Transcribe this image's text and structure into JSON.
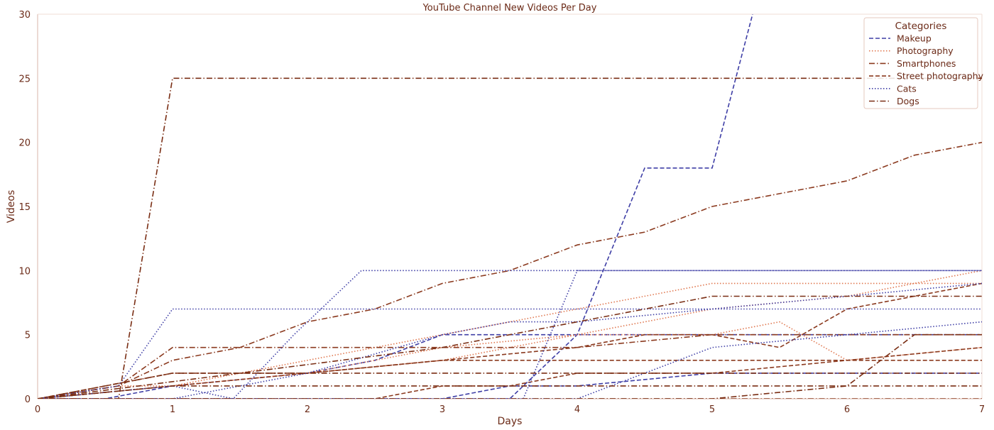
{
  "chart_data": {
    "type": "line",
    "title": "YouTube Channel New Videos Per Day",
    "xlabel": "Days",
    "ylabel": "Videos",
    "xlim": [
      0,
      7
    ],
    "ylim": [
      0,
      30
    ],
    "x_ticks": [
      0,
      1,
      2,
      3,
      4,
      5,
      6,
      7
    ],
    "y_ticks": [
      0,
      5,
      10,
      15,
      20,
      25,
      30
    ],
    "grid": false,
    "legend": {
      "title": "Categories",
      "placement": "top-right",
      "entries": [
        {
          "name": "Makeup",
          "color": "#3f3fa6",
          "dash": "dashed"
        },
        {
          "name": "Photography",
          "color": "#e07850",
          "dash": "dotted"
        },
        {
          "name": "Smartphones",
          "color": "#8b3a1f",
          "dash": "dashdot"
        },
        {
          "name": "Street photography",
          "color": "#8b3a1f",
          "dash": "dashed"
        },
        {
          "name": "Cats",
          "color": "#3f3fa6",
          "dash": "dotted"
        },
        {
          "name": "Dogs",
          "color": "#7a2e14",
          "dash": "dashdot"
        }
      ]
    },
    "series": [
      {
        "name": "Makeup",
        "color": "#3f3fa6",
        "dash": "dashed",
        "x": [
          0,
          1,
          2,
          3,
          3.5,
          4,
          4.5,
          5,
          5.3
        ],
        "y": [
          0,
          0,
          0,
          0,
          0,
          5,
          18,
          18,
          30
        ]
      },
      {
        "name": "Makeup",
        "color": "#3f3fa6",
        "dash": "dashed",
        "x": [
          0,
          0.5,
          1,
          2,
          2.5,
          3,
          3.5,
          4,
          5,
          6,
          7
        ],
        "y": [
          0,
          0,
          1,
          2,
          3,
          5,
          5,
          5,
          5,
          5,
          5
        ]
      },
      {
        "name": "Makeup",
        "color": "#3f3fa6",
        "dash": "dashed",
        "x": [
          0,
          3,
          3.5,
          4,
          5,
          6,
          7
        ],
        "y": [
          0,
          0,
          1,
          1,
          2,
          2,
          2
        ]
      },
      {
        "name": "Photography",
        "color": "#e07850",
        "dash": "dotted",
        "x": [
          0,
          0.6,
          1,
          2,
          3,
          4,
          5,
          6,
          7
        ],
        "y": [
          0,
          1,
          1,
          3,
          5,
          7,
          9,
          9,
          9
        ]
      },
      {
        "name": "Photography",
        "color": "#e07850",
        "dash": "dotted",
        "x": [
          0,
          1,
          2,
          3,
          4,
          4.5,
          5,
          5.5,
          6,
          7
        ],
        "y": [
          0,
          1,
          2,
          4,
          5,
          5,
          5,
          6,
          3,
          4
        ]
      },
      {
        "name": "Photography",
        "color": "#e07850",
        "dash": "dotted",
        "x": [
          0,
          1,
          2,
          3,
          4,
          5,
          6,
          7
        ],
        "y": [
          0,
          1,
          2,
          3,
          5,
          7,
          8,
          10
        ]
      },
      {
        "name": "Smartphones",
        "color": "#8b3a1f",
        "dash": "dashdot",
        "x": [
          0,
          0.6,
          1,
          1.5,
          2,
          2.5,
          3,
          3.5,
          4,
          4.5,
          5,
          5.5,
          6,
          6.5,
          7
        ],
        "y": [
          0,
          1,
          3,
          4,
          6,
          7,
          9,
          10,
          12,
          13,
          15,
          16,
          17,
          19,
          20
        ]
      },
      {
        "name": "Smartphones",
        "color": "#8b3a1f",
        "dash": "dashdot",
        "x": [
          0,
          0.6,
          1,
          2,
          3,
          4,
          5,
          6,
          7
        ],
        "y": [
          0,
          1,
          4,
          4,
          4,
          4,
          5,
          5,
          5
        ]
      },
      {
        "name": "Smartphones",
        "color": "#8b3a1f",
        "dash": "dashdot",
        "x": [
          0,
          1,
          2,
          3,
          4,
          5,
          6,
          7
        ],
        "y": [
          0,
          0,
          0,
          0,
          0,
          0,
          0,
          0
        ]
      },
      {
        "name": "Street photography",
        "color": "#8b3a1f",
        "dash": "dashed",
        "x": [
          0,
          1,
          2,
          3,
          4,
          4.5,
          5,
          5.5,
          6,
          7
        ],
        "y": [
          0,
          1,
          2,
          3,
          4,
          5,
          5,
          4,
          7,
          9
        ]
      },
      {
        "name": "Street photography",
        "color": "#8b3a1f",
        "dash": "dashed",
        "x": [
          0,
          1,
          2,
          3,
          4,
          5,
          6,
          7
        ],
        "y": [
          0,
          2,
          2,
          3,
          3,
          3,
          3,
          3
        ]
      },
      {
        "name": "Street photography",
        "color": "#8b3a1f",
        "dash": "dashed",
        "x": [
          0,
          2,
          2.5,
          3,
          3.5,
          4,
          4.5,
          5,
          6,
          7
        ],
        "y": [
          0,
          0,
          0,
          1,
          1,
          2,
          2,
          2,
          3,
          4
        ]
      },
      {
        "name": "Cats",
        "color": "#3f3fa6",
        "dash": "dotted",
        "x": [
          0,
          0.6,
          1,
          2,
          3,
          4,
          5,
          6,
          7
        ],
        "y": [
          0,
          1,
          7,
          7,
          7,
          7,
          7,
          7,
          7
        ]
      },
      {
        "name": "Cats",
        "color": "#3f3fa6",
        "dash": "dotted",
        "x": [
          0,
          1,
          1.45,
          1.9,
          2.4,
          3,
          4,
          5,
          6,
          7
        ],
        "y": [
          0,
          1,
          0,
          5,
          10,
          10,
          10,
          10,
          10,
          10
        ]
      },
      {
        "name": "Cats",
        "color": "#3f3fa6",
        "dash": "dotted",
        "x": [
          0,
          1,
          1.5,
          2,
          3,
          3.5,
          4,
          5,
          6,
          7
        ],
        "y": [
          0,
          0,
          1,
          2,
          5,
          6,
          6,
          7,
          8,
          9
        ]
      },
      {
        "name": "Cats",
        "color": "#3f3fa6",
        "dash": "dotted",
        "x": [
          0,
          3.6,
          4,
          5,
          6,
          7
        ],
        "y": [
          0,
          0,
          10,
          10,
          10,
          10
        ]
      },
      {
        "name": "Cats",
        "color": "#3f3fa6",
        "dash": "dotted",
        "x": [
          0,
          2,
          3,
          4,
          4.5,
          5,
          6,
          7
        ],
        "y": [
          0,
          0,
          0,
          0,
          2,
          4,
          5,
          6
        ]
      },
      {
        "name": "Dogs",
        "color": "#7a2e14",
        "dash": "dashdot",
        "x": [
          0,
          0.6,
          1,
          2,
          3,
          4,
          5,
          6,
          7
        ],
        "y": [
          0,
          0,
          25,
          25,
          25,
          25,
          25,
          25,
          25
        ]
      },
      {
        "name": "Dogs",
        "color": "#7a2e14",
        "dash": "dashdot",
        "x": [
          0,
          1,
          2,
          3,
          4,
          5,
          6,
          7
        ],
        "y": [
          0,
          1,
          1,
          1,
          1,
          1,
          1,
          1
        ]
      },
      {
        "name": "Dogs",
        "color": "#7a2e14",
        "dash": "dashdot",
        "x": [
          0,
          0.5,
          1,
          2,
          3,
          4,
          5,
          6,
          7
        ],
        "y": [
          0,
          1,
          2,
          2,
          2,
          2,
          2,
          2,
          2
        ]
      },
      {
        "name": "Dogs",
        "color": "#7a2e14",
        "dash": "dashdot",
        "x": [
          0,
          3,
          4,
          5,
          6,
          7
        ],
        "y": [
          0,
          4,
          6,
          8,
          8,
          8
        ]
      },
      {
        "name": "Dogs",
        "color": "#7a2e14",
        "dash": "dashdot",
        "x": [
          0,
          5,
          6,
          6.5,
          7
        ],
        "y": [
          0,
          0,
          1,
          5,
          5
        ]
      }
    ]
  }
}
